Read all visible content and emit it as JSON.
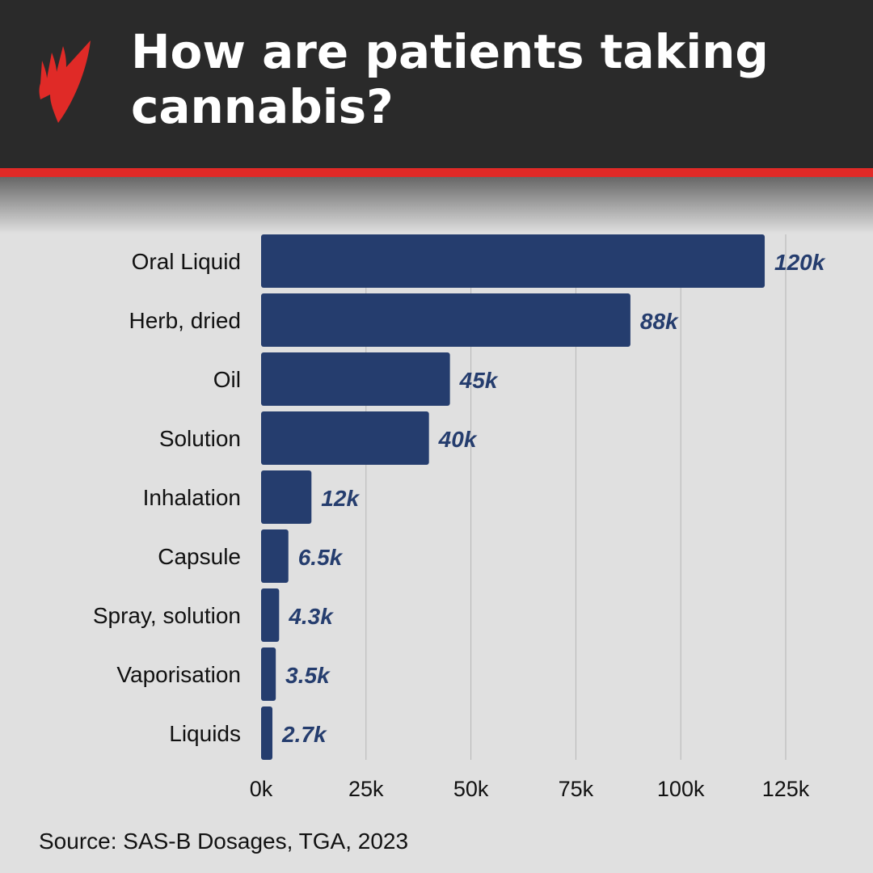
{
  "header": {
    "title": "How are patients taking cannabis?",
    "logo": "SBS logo"
  },
  "colors": {
    "bar": "#253d6e",
    "label": "#253d6e",
    "accent": "#e02a27",
    "header_bg": "#2a2a2a"
  },
  "chart_data": {
    "type": "bar",
    "orientation": "horizontal",
    "categories": [
      "Oral Liquid",
      "Herb, dried",
      "Oil",
      "Solution",
      "Inhalation",
      "Capsule",
      "Spray, solution",
      "Vaporisation",
      "Liquids"
    ],
    "values": [
      120000,
      88000,
      45000,
      40000,
      12000,
      6500,
      4300,
      3500,
      2700
    ],
    "data_labels": [
      "120k",
      "88k",
      "45k",
      "40k",
      "12k",
      "6.5k",
      "4.3k",
      "3.5k",
      "2.7k"
    ],
    "xticks": [
      0,
      25000,
      50000,
      75000,
      100000,
      125000
    ],
    "xtick_labels": [
      "0k",
      "25k",
      "50k",
      "75k",
      "100k",
      "125k"
    ],
    "xlim": [
      0,
      125000
    ],
    "grid": "vertical",
    "title": "How are patients taking cannabis?"
  },
  "footer": {
    "source": "Source: SAS-B Dosages, TGA, 2023"
  }
}
